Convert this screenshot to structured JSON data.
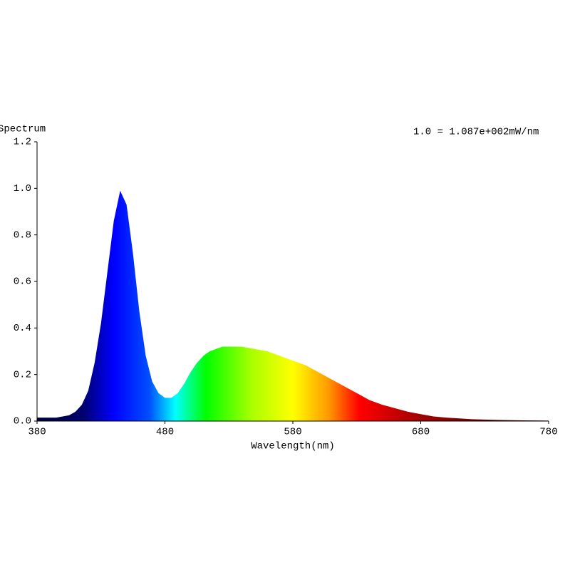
{
  "chart_data": {
    "type": "area",
    "title": "Spectrum",
    "annotation": "1.0 = 1.087e+002mW/nm",
    "x_label": "Wavelength(nm)",
    "x": [
      380,
      385,
      390,
      395,
      400,
      405,
      410,
      415,
      420,
      425,
      430,
      435,
      440,
      445,
      450,
      455,
      460,
      465,
      470,
      475,
      480,
      485,
      490,
      495,
      500,
      505,
      510,
      515,
      520,
      525,
      530,
      535,
      540,
      545,
      550,
      560,
      570,
      580,
      590,
      600,
      610,
      620,
      630,
      640,
      650,
      660,
      670,
      680,
      690,
      700,
      720,
      740,
      760,
      780
    ],
    "values": [
      0.015,
      0.015,
      0.015,
      0.015,
      0.02,
      0.025,
      0.04,
      0.07,
      0.13,
      0.25,
      0.42,
      0.64,
      0.86,
      0.99,
      0.93,
      0.72,
      0.47,
      0.28,
      0.17,
      0.12,
      0.1,
      0.1,
      0.12,
      0.16,
      0.21,
      0.25,
      0.28,
      0.3,
      0.31,
      0.32,
      0.32,
      0.32,
      0.32,
      0.315,
      0.31,
      0.3,
      0.28,
      0.26,
      0.24,
      0.21,
      0.18,
      0.15,
      0.12,
      0.09,
      0.07,
      0.055,
      0.04,
      0.03,
      0.02,
      0.015,
      0.008,
      0.005,
      0.003,
      0.002
    ],
    "xlim": [
      380,
      780
    ],
    "xticks": [
      380,
      480,
      580,
      680,
      780
    ],
    "ylim": [
      0,
      1.2
    ],
    "yticks": [
      {
        "value": 0,
        "label": "0.0"
      },
      {
        "value": 0.2,
        "label": "0.2"
      },
      {
        "value": 0.4,
        "label": "0.4"
      },
      {
        "value": 0.6,
        "label": "0.6"
      },
      {
        "value": 0.8,
        "label": "0.8"
      },
      {
        "value": 1,
        "label": "1.0"
      },
      {
        "value": 1.2,
        "label": "1.2"
      }
    ]
  }
}
